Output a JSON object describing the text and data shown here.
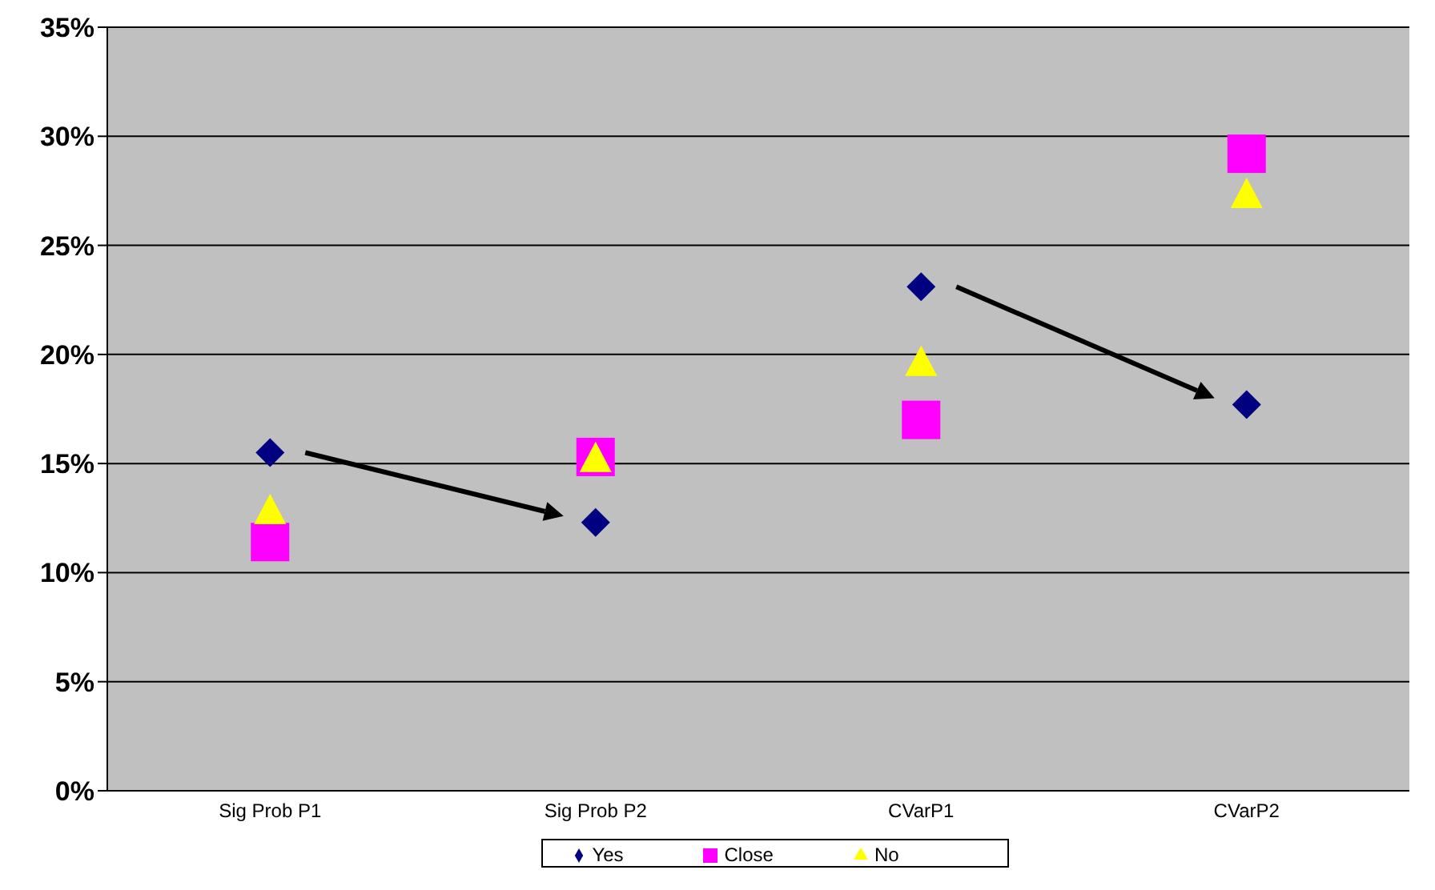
{
  "chart_data": {
    "type": "scatter",
    "categories": [
      "Sig Prob P1",
      "Sig Prob P2",
      "CVarP1",
      "CVarP2"
    ],
    "series": [
      {
        "name": "Yes",
        "color": "#000080",
        "marker": "diamond",
        "values": [
          15.5,
          12.3,
          23.1,
          17.7
        ]
      },
      {
        "name": "Close",
        "color": "#ff00ff",
        "marker": "square",
        "values": [
          11.4,
          15.3,
          17.0,
          29.2
        ]
      },
      {
        "name": "No",
        "color": "#ffff00",
        "marker": "triangle",
        "values": [
          12.8,
          15.2,
          19.6,
          27.3
        ]
      }
    ],
    "ylim": [
      0,
      35
    ],
    "yticks": [
      {
        "value": 0,
        "label": "0%"
      },
      {
        "value": 5,
        "label": "5%"
      },
      {
        "value": 10,
        "label": "10%"
      },
      {
        "value": 15,
        "label": "15%"
      },
      {
        "value": 20,
        "label": "20%"
      },
      {
        "value": 25,
        "label": "25%"
      },
      {
        "value": 30,
        "label": "30%"
      },
      {
        "value": 35,
        "label": "35%"
      }
    ],
    "grid": "y",
    "legend": "bottom"
  }
}
